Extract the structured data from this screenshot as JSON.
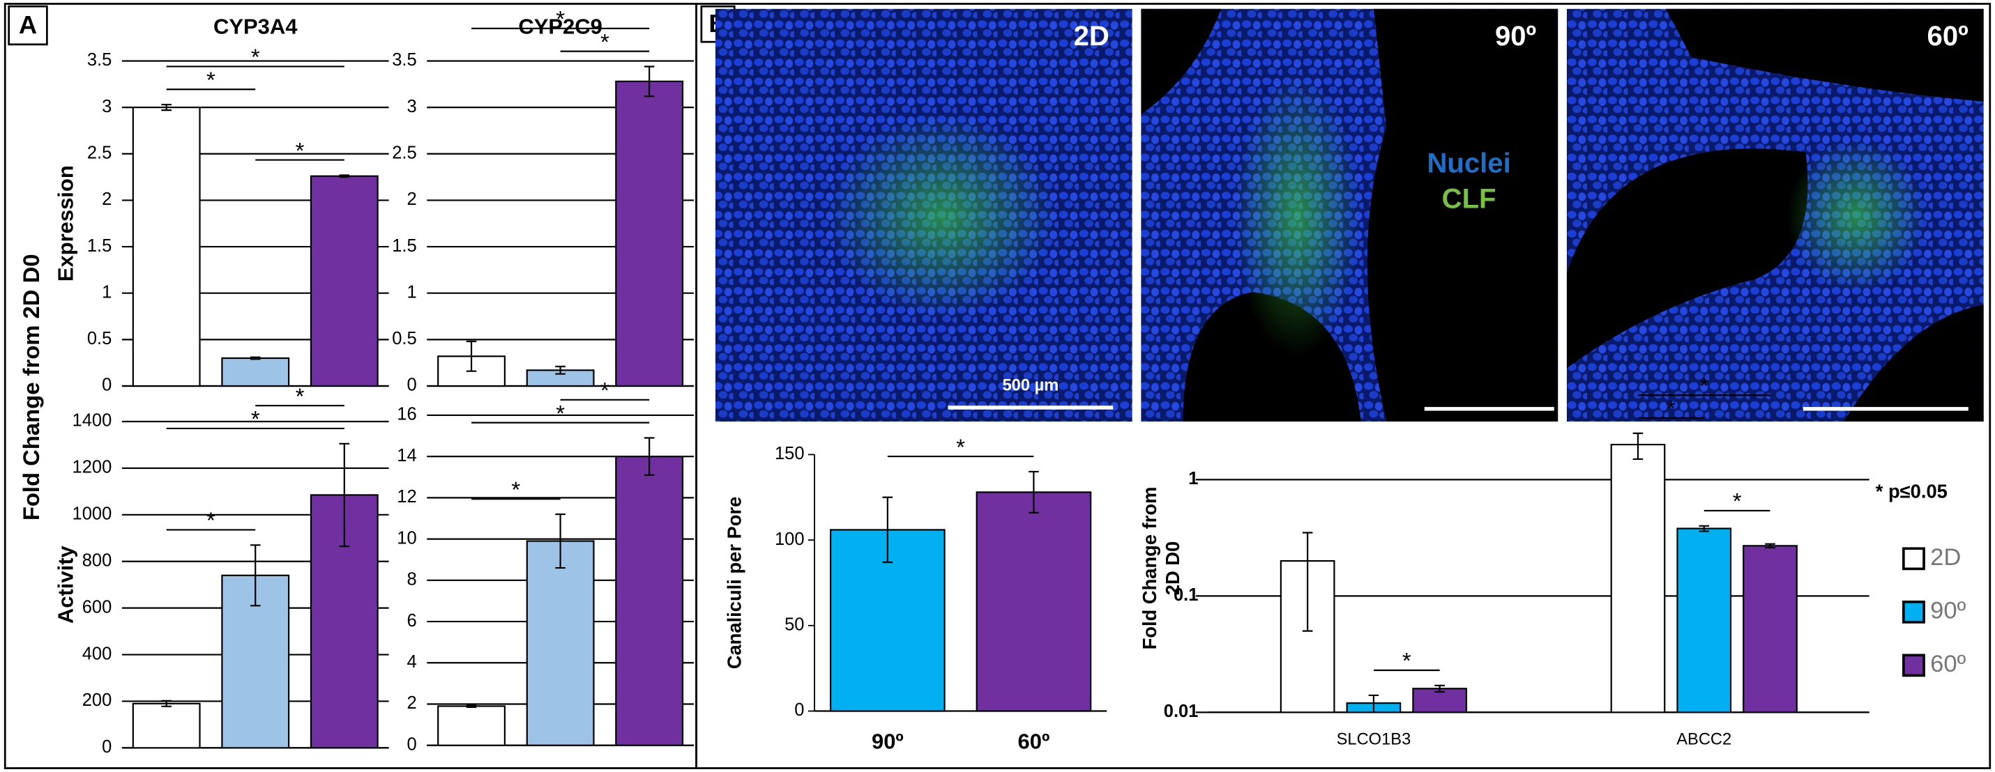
{
  "figure": {
    "panels": [
      "A",
      "B"
    ],
    "ylabel": "Fold Change from 2D D0",
    "images": [
      {
        "label": "2D"
      },
      {
        "label": "90º"
      },
      {
        "label": "60º"
      }
    ],
    "stain_labels": [
      "Nuclei",
      "CLF"
    ],
    "scale_bar": "500 µm",
    "note": "* p≤0.05"
  },
  "chart_data": [
    {
      "type": "bar",
      "title": "CYP3A4",
      "ylabel": "Expression",
      "values": [
        3.0,
        0.3,
        2.26
      ],
      "errors": [
        0.03,
        0.01,
        0.01
      ],
      "colors": [
        "#ffffff",
        "#9dc3e6",
        "#7030a0"
      ],
      "ylim": [
        0,
        3.5
      ],
      "yticks": [
        0,
        0.5,
        1,
        1.5,
        2,
        2.5,
        3,
        3.5
      ],
      "grid": true,
      "significance": [
        {
          "pair": [
            0,
            1
          ],
          "label": "*"
        },
        {
          "pair": [
            0,
            2
          ],
          "label": "*"
        },
        {
          "pair": [
            1,
            2
          ],
          "label": "*"
        }
      ]
    },
    {
      "type": "bar",
      "title": "CYP2C9",
      "values": [
        0.32,
        0.17,
        3.28
      ],
      "errors": [
        0.16,
        0.04,
        0.16
      ],
      "colors": [
        "#ffffff",
        "#9dc3e6",
        "#7030a0"
      ],
      "ylim": [
        0,
        3.5
      ],
      "yticks": [
        0,
        0.5,
        1,
        1.5,
        2,
        2.5,
        3,
        3.5
      ],
      "grid": true,
      "significance": [
        {
          "pair": [
            1,
            2
          ],
          "label": "*"
        },
        {
          "pair": [
            0,
            2
          ],
          "label": "*"
        }
      ]
    },
    {
      "type": "bar",
      "ylabel": "Activity",
      "values": [
        190,
        740,
        1085
      ],
      "errors": [
        12,
        130,
        220
      ],
      "colors": [
        "#ffffff",
        "#9dc3e6",
        "#7030a0"
      ],
      "ylim": [
        0,
        1400
      ],
      "yticks": [
        0,
        200,
        400,
        600,
        800,
        1000,
        1200,
        1400
      ],
      "grid": true,
      "significance": [
        {
          "pair": [
            0,
            1
          ],
          "label": "*"
        },
        {
          "pair": [
            0,
            2
          ],
          "label": "*"
        },
        {
          "pair": [
            1,
            2
          ],
          "label": "*"
        }
      ]
    },
    {
      "type": "bar",
      "values": [
        1.9,
        9.9,
        14.0
      ],
      "errors": [
        0.05,
        1.3,
        0.9
      ],
      "colors": [
        "#ffffff",
        "#9dc3e6",
        "#7030a0"
      ],
      "ylim": [
        0,
        16
      ],
      "yticks": [
        0,
        2,
        4,
        6,
        8,
        10,
        12,
        14,
        16
      ],
      "grid": true,
      "significance": [
        {
          "pair": [
            0,
            1
          ],
          "label": "*"
        },
        {
          "pair": [
            0,
            2
          ],
          "label": "*"
        },
        {
          "pair": [
            1,
            2
          ],
          "label": "*"
        }
      ]
    },
    {
      "type": "bar",
      "ylabel": "Canaliculi per Pore",
      "categories": [
        "90º",
        "60º"
      ],
      "values": [
        106,
        128
      ],
      "errors": [
        19,
        12
      ],
      "colors": [
        "#00b0f0",
        "#7030a0"
      ],
      "ylim": [
        0,
        150
      ],
      "yticks": [
        0,
        50,
        100,
        150
      ],
      "grid": false,
      "significance": [
        {
          "pair": [
            0,
            1
          ],
          "label": "*"
        }
      ]
    },
    {
      "type": "grouped_bar",
      "ylabel": [
        "Fold Change from",
        "2D D0"
      ],
      "categories": [
        "SLCO1B3",
        "ABCC2"
      ],
      "log_scale": true,
      "ylim": [
        0.01,
        3
      ],
      "yticks": [
        0.01,
        0.1,
        1
      ],
      "grid": true,
      "legend": "right",
      "series": [
        {
          "name": "2D",
          "color": "#ffffff",
          "values": [
            0.2,
            2.0
          ],
          "errors": [
            0.15,
            0.5
          ]
        },
        {
          "name": "90º",
          "color": "#00b0f0",
          "values": [
            0.012,
            0.38
          ],
          "errors": [
            0.002,
            0.02
          ]
        },
        {
          "name": "60º",
          "color": "#7030a0",
          "values": [
            0.016,
            0.27
          ],
          "errors": [
            0.001,
            0.01
          ]
        }
      ],
      "significance": [
        {
          "category": 0,
          "pair": [
            1,
            2
          ],
          "label": "*"
        },
        {
          "category": 1,
          "pair": [
            0,
            1
          ],
          "label": "*"
        },
        {
          "category": 1,
          "pair": [
            0,
            2
          ],
          "label": "*"
        },
        {
          "category": 1,
          "pair": [
            1,
            2
          ],
          "label": "*"
        }
      ]
    }
  ]
}
